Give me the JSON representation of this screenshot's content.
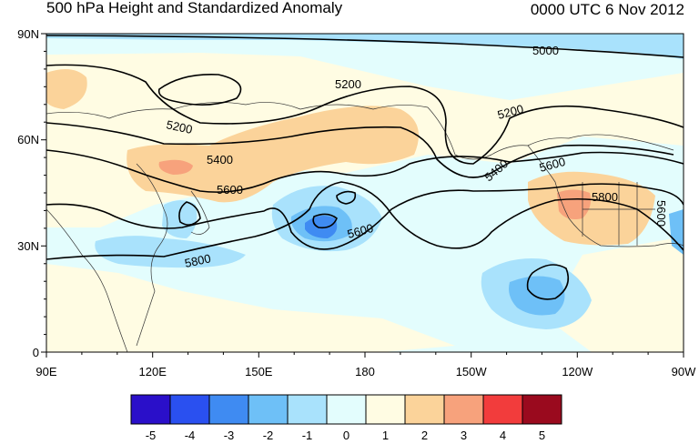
{
  "header": {
    "title": "500 hPa Height and Standardized Anomaly",
    "timestamp": "0000 UTC 6 Nov 2012"
  },
  "map": {
    "lat_labels": [
      "90N",
      "60N",
      "30N",
      "0"
    ],
    "lon_labels": [
      "90E",
      "120E",
      "150E",
      "180",
      "150W",
      "120W",
      "90W"
    ],
    "contour_labels": [
      "5000",
      "5200",
      "5200",
      "5200",
      "5400",
      "5400",
      "5600",
      "5600",
      "5600",
      "5800",
      "5800",
      "5600"
    ]
  },
  "colorbar": {
    "labels": [
      "-5",
      "-4",
      "-3",
      "-2",
      "-1",
      "0",
      "1",
      "2",
      "3",
      "4",
      "5"
    ],
    "colors": [
      "#2a0fc9",
      "#2a50f0",
      "#3f8bf2",
      "#6ec0f7",
      "#a9e2fc",
      "#e3fdfd",
      "#fffce3",
      "#fbd39a",
      "#f7a27c",
      "#f23c3c",
      "#9a0a1e"
    ]
  }
}
